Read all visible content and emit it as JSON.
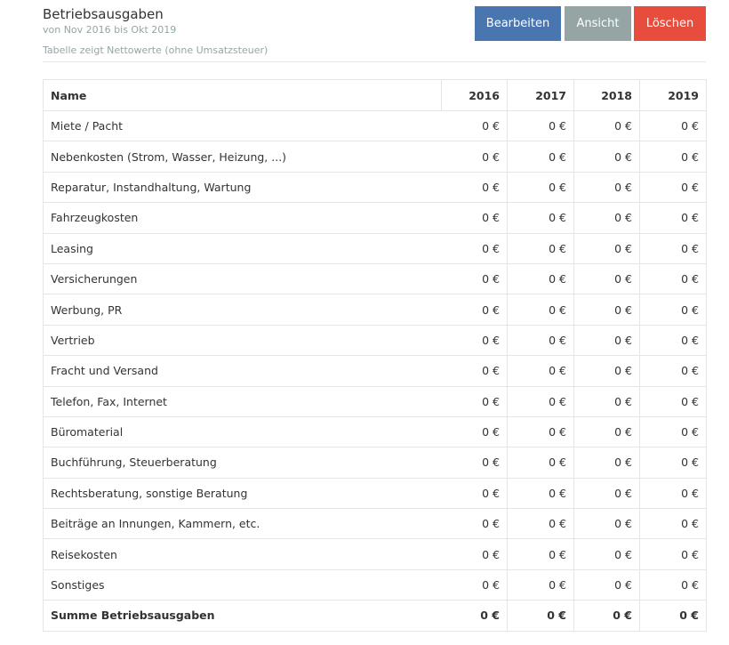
{
  "header": {
    "title": "Betriebsausgaben",
    "subtitle": "von Nov 2016 bis Okt 2019",
    "note": "Tabelle zeigt Nettowerte (ohne Umsatzsteuer)"
  },
  "buttons": [
    "Bearbeiten",
    "Ansicht",
    "Löschen"
  ],
  "table": {
    "columns": [
      "Name",
      "2016",
      "2017",
      "2018",
      "2019"
    ],
    "rows": [
      [
        "Miete / Pacht",
        "0 €",
        "0 €",
        "0 €",
        "0 €"
      ],
      [
        "Nebenkosten (Strom, Wasser, Heizung, ...)",
        "0 €",
        "0 €",
        "0 €",
        "0 €"
      ],
      [
        "Reparatur, Instandhaltung, Wartung",
        "0 €",
        "0 €",
        "0 €",
        "0 €"
      ],
      [
        "Fahrzeugkosten",
        "0 €",
        "0 €",
        "0 €",
        "0 €"
      ],
      [
        "Leasing",
        "0 €",
        "0 €",
        "0 €",
        "0 €"
      ],
      [
        "Versicherungen",
        "0 €",
        "0 €",
        "0 €",
        "0 €"
      ],
      [
        "Werbung, PR",
        "0 €",
        "0 €",
        "0 €",
        "0 €"
      ],
      [
        "Vertrieb",
        "0 €",
        "0 €",
        "0 €",
        "0 €"
      ],
      [
        "Fracht und Versand",
        "0 €",
        "0 €",
        "0 €",
        "0 €"
      ],
      [
        "Telefon, Fax, Internet",
        "0 €",
        "0 €",
        "0 €",
        "0 €"
      ],
      [
        "Büromaterial",
        "0 €",
        "0 €",
        "0 €",
        "0 €"
      ],
      [
        "Buchführung, Steuerberatung",
        "0 €",
        "0 €",
        "0 €",
        "0 €"
      ],
      [
        "Rechtsberatung, sonstige Beratung",
        "0 €",
        "0 €",
        "0 €",
        "0 €"
      ],
      [
        "Beiträge an Innungen, Kammern, etc.",
        "0 €",
        "0 €",
        "0 €",
        "0 €"
      ],
      [
        "Reisekosten",
        "0 €",
        "0 €",
        "0 €",
        "0 €"
      ],
      [
        "Sonstiges",
        "0 €",
        "0 €",
        "0 €",
        "0 €"
      ]
    ],
    "total": [
      "Summe Betriebsausgaben",
      "0 €",
      "0 €",
      "0 €",
      "0 €"
    ]
  }
}
